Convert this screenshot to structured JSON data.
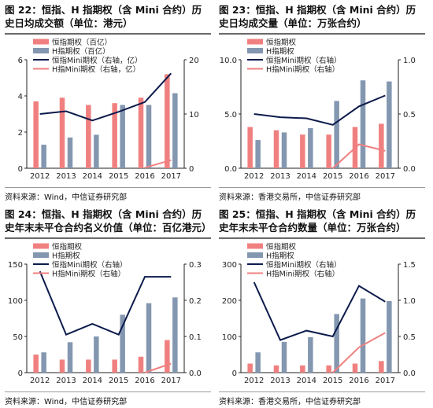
{
  "panels": [
    {
      "title": "图 22：恒指、H 指期权（含 Mini 合约）历史日均成交额（单位：港元）",
      "source": "资料来源：Wind，中信证券研究部",
      "chart_data": {
        "type": "bar",
        "categories": [
          "2012",
          "2013",
          "2014",
          "2015",
          "2016",
          "2017"
        ],
        "ylim": [
          0,
          6
        ],
        "yticks": [
          "0",
          "2",
          "4",
          "6"
        ],
        "y2lim": [
          0,
          20
        ],
        "y2ticks": [
          "0",
          "10",
          "20"
        ],
        "series": [
          {
            "name": "恒指期权（百亿）",
            "type": "bar",
            "axis": "left",
            "color": "#f08080",
            "values": [
              3.7,
              3.9,
              3.5,
              3.6,
              3.9,
              5.2
            ]
          },
          {
            "name": "H指期权（百亿）",
            "type": "bar",
            "axis": "left",
            "color": "#8497b0",
            "values": [
              1.3,
              1.7,
              1.85,
              3.5,
              3.5,
              4.15
            ]
          },
          {
            "name": "恒指Mini期权（右轴，亿）",
            "type": "line",
            "axis": "right",
            "color": "#0d1b4c",
            "values": [
              10,
              10.5,
              8.8,
              10.4,
              12.2,
              17.5
            ]
          },
          {
            "name": "H指Mini期权（右轴，亿）",
            "type": "line",
            "axis": "right",
            "color": "#f08080",
            "values": [
              null,
              null,
              null,
              null,
              0.1,
              1.5
            ]
          }
        ]
      }
    },
    {
      "title": "图 23：恒指、H 指期权（含 Mini 合约）历史日均成交量（单位：万张合约）",
      "source": "资料来源：香港交易所，中信证券研究部",
      "chart_data": {
        "type": "bar",
        "categories": [
          "2012",
          "2013",
          "2014",
          "2015",
          "2016",
          "2017"
        ],
        "ylim": [
          0,
          10
        ],
        "yticks": [
          "0.0",
          "5.0",
          "10.0"
        ],
        "y2lim": [
          0,
          1
        ],
        "y2ticks": [
          "0.0",
          "0.5",
          "1.0"
        ],
        "series": [
          {
            "name": "恒指期权",
            "type": "bar",
            "axis": "left",
            "color": "#f08080",
            "values": [
              3.8,
              3.5,
              3.1,
              3.1,
              3.8,
              4.1
            ]
          },
          {
            "name": "H指期权",
            "type": "bar",
            "axis": "left",
            "color": "#8497b0",
            "values": [
              2.6,
              3.3,
              3.7,
              6.2,
              8.1,
              8.0
            ]
          },
          {
            "name": "恒指Mini期权（右轴）",
            "type": "line",
            "axis": "right",
            "color": "#0d1b4c",
            "values": [
              0.5,
              0.47,
              0.46,
              0.4,
              0.57,
              0.67
            ]
          },
          {
            "name": "H指Mini期权（右轴）",
            "type": "line",
            "axis": "right",
            "color": "#f08080",
            "values": [
              null,
              null,
              null,
              0.0,
              0.22,
              0.16
            ]
          }
        ]
      }
    },
    {
      "title": "图 24：恒指、H 指期权（含 Mini 合约）历史年末未平仓合约名义价值（单位：百亿港元）",
      "source": "资料来源：Wind，中信证券研究部",
      "chart_data": {
        "type": "bar",
        "categories": [
          "2012",
          "2013",
          "2014",
          "2015",
          "2016",
          "2017"
        ],
        "ylim": [
          0,
          150
        ],
        "yticks": [
          "0",
          "50",
          "100",
          "150"
        ],
        "y2lim": [
          0,
          0.3
        ],
        "y2ticks": [
          "0.0",
          "0.1",
          "0.2",
          "0.3"
        ],
        "series": [
          {
            "name": "恒指期权",
            "type": "bar",
            "axis": "left",
            "color": "#f08080",
            "values": [
              25,
              18,
              18,
              18,
              22,
              45
            ]
          },
          {
            "name": "H指期权",
            "type": "bar",
            "axis": "left",
            "color": "#8497b0",
            "values": [
              28,
              42,
              50,
              80,
              96,
              104
            ]
          },
          {
            "name": "恒指Mini期权（右轴）",
            "type": "line",
            "axis": "right",
            "color": "#0d1b4c",
            "values": [
              0.28,
              0.105,
              0.135,
              0.105,
              0.265,
              0.265
            ]
          },
          {
            "name": "H指Mini期权（右轴）",
            "type": "line",
            "axis": "right",
            "color": "#f08080",
            "values": [
              null,
              null,
              null,
              null,
              0.0,
              0.025
            ]
          }
        ]
      }
    },
    {
      "title": "图 25：恒指、H 指期权（含 Mini 合约）历史年末未平仓合约数量（单位：万张合约）",
      "source": "资料来源：香港交易所，中信证券研究部",
      "chart_data": {
        "type": "bar",
        "categories": [
          "2012",
          "2013",
          "2014",
          "2015",
          "2016",
          "2017"
        ],
        "ylim": [
          0,
          300
        ],
        "yticks": [
          "0",
          "100",
          "200",
          "300"
        ],
        "y2lim": [
          0,
          1.5
        ],
        "y2ticks": [
          "0.0",
          "0.5",
          "1.0",
          "1.5"
        ],
        "series": [
          {
            "name": "恒指期权",
            "type": "bar",
            "axis": "left",
            "color": "#f08080",
            "values": [
              25,
              20,
              20,
              20,
              25,
              32
            ]
          },
          {
            "name": "H指期权",
            "type": "bar",
            "axis": "left",
            "color": "#8497b0",
            "values": [
              56,
              85,
              98,
              162,
              205,
              198
            ]
          },
          {
            "name": "恒指Mini期权（右轴）",
            "type": "line",
            "axis": "right",
            "color": "#0d1b4c",
            "values": [
              1.25,
              0.45,
              0.58,
              0.5,
              1.2,
              0.98
            ]
          },
          {
            "name": "H指Mini期权（右轴）",
            "type": "line",
            "axis": "right",
            "color": "#f08080",
            "values": [
              null,
              null,
              null,
              0.0,
              0.35,
              0.55
            ]
          }
        ]
      }
    }
  ]
}
